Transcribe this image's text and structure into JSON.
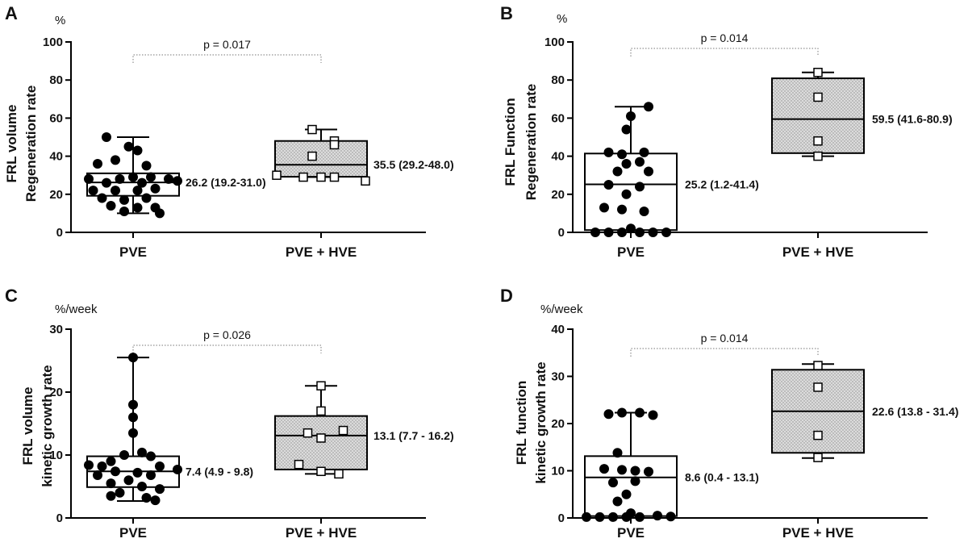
{
  "chart_data": [
    {
      "id": "A",
      "type": "box",
      "panel_label": "A",
      "unit": "%",
      "ylabel": [
        "FRL volume",
        "Regeneration rate"
      ],
      "ylim": [
        0,
        100
      ],
      "yticks": [
        0,
        20,
        40,
        60,
        80,
        100
      ],
      "categories": [
        "PVE",
        "PVE + HVE"
      ],
      "p_value": "p = 0.017",
      "groups": [
        {
          "name": "PVE",
          "marker": "circle",
          "fill": "none",
          "min": 10,
          "q1": 19.2,
          "median": 26.2,
          "q3": 31.0,
          "max": 50,
          "annotation": "26.2 (19.2-31.0)",
          "points": [
            {
              "j": -0.6,
              "y": 50
            },
            {
              "j": -0.1,
              "y": 45
            },
            {
              "j": 0.1,
              "y": 43
            },
            {
              "j": -0.4,
              "y": 38
            },
            {
              "j": -0.8,
              "y": 36
            },
            {
              "j": 0.3,
              "y": 35
            },
            {
              "j": -1.0,
              "y": 28
            },
            {
              "j": -0.3,
              "y": 28
            },
            {
              "j": 0.0,
              "y": 29
            },
            {
              "j": 0.4,
              "y": 29
            },
            {
              "j": 0.8,
              "y": 28
            },
            {
              "j": 1.0,
              "y": 27
            },
            {
              "j": -0.6,
              "y": 26
            },
            {
              "j": 0.2,
              "y": 26
            },
            {
              "j": -0.9,
              "y": 22
            },
            {
              "j": -0.4,
              "y": 22
            },
            {
              "j": 0.1,
              "y": 22
            },
            {
              "j": 0.5,
              "y": 23
            },
            {
              "j": -0.7,
              "y": 18
            },
            {
              "j": -0.2,
              "y": 17
            },
            {
              "j": 0.3,
              "y": 18
            },
            {
              "j": -0.5,
              "y": 14
            },
            {
              "j": 0.1,
              "y": 13
            },
            {
              "j": 0.5,
              "y": 13
            },
            {
              "j": -0.2,
              "y": 11
            },
            {
              "j": 0.6,
              "y": 10
            }
          ]
        },
        {
          "name": "PVE + HVE",
          "marker": "square",
          "fill": "dotted",
          "min": 29,
          "q1": 29.2,
          "median": 35.5,
          "q3": 48.0,
          "max": 54,
          "annotation": "35.5 (29.2-48.0)",
          "points": [
            {
              "j": -0.2,
              "y": 54
            },
            {
              "j": 0.3,
              "y": 48
            },
            {
              "j": 0.3,
              "y": 46
            },
            {
              "j": -0.2,
              "y": 40
            },
            {
              "j": -1.0,
              "y": 30
            },
            {
              "j": -0.4,
              "y": 29
            },
            {
              "j": 0.0,
              "y": 29
            },
            {
              "j": 0.3,
              "y": 29
            },
            {
              "j": 1.0,
              "y": 27
            }
          ]
        }
      ]
    },
    {
      "id": "B",
      "type": "box",
      "panel_label": "B",
      "unit": "%",
      "ylabel": [
        "FRL Function",
        "Regeneration rate"
      ],
      "ylim": [
        0,
        100
      ],
      "yticks": [
        0,
        20,
        40,
        60,
        80,
        100
      ],
      "categories": [
        "PVE",
        "PVE + HVE"
      ],
      "p_value": "p = 0.014",
      "groups": [
        {
          "name": "PVE",
          "marker": "circle",
          "fill": "none",
          "min": 0,
          "q1": 1.2,
          "median": 25.2,
          "q3": 41.4,
          "max": 66,
          "annotation": "25.2 (1.2-41.4)",
          "points": [
            {
              "j": 0.4,
              "y": 66
            },
            {
              "j": 0.0,
              "y": 61
            },
            {
              "j": -0.1,
              "y": 54
            },
            {
              "j": -0.5,
              "y": 42
            },
            {
              "j": -0.2,
              "y": 41
            },
            {
              "j": 0.3,
              "y": 42
            },
            {
              "j": 0.2,
              "y": 37
            },
            {
              "j": -0.1,
              "y": 36
            },
            {
              "j": -0.3,
              "y": 32
            },
            {
              "j": 0.4,
              "y": 32
            },
            {
              "j": -0.5,
              "y": 25
            },
            {
              "j": 0.2,
              "y": 24
            },
            {
              "j": -0.1,
              "y": 20
            },
            {
              "j": -0.6,
              "y": 13
            },
            {
              "j": -0.2,
              "y": 12
            },
            {
              "j": 0.3,
              "y": 11
            },
            {
              "j": 0.0,
              "y": 2
            },
            {
              "j": -0.8,
              "y": 0
            },
            {
              "j": -0.5,
              "y": 0
            },
            {
              "j": -0.2,
              "y": 0
            },
            {
              "j": 0.2,
              "y": 0
            },
            {
              "j": 0.5,
              "y": 0
            },
            {
              "j": 0.8,
              "y": 0
            }
          ]
        },
        {
          "name": "PVE + HVE",
          "marker": "square",
          "fill": "dotted",
          "min": 40,
          "q1": 41.6,
          "median": 59.5,
          "q3": 80.9,
          "max": 84,
          "annotation": "59.5 (41.6-80.9)",
          "points": [
            {
              "j": 0.0,
              "y": 84
            },
            {
              "j": 0.0,
              "y": 71
            },
            {
              "j": 0.0,
              "y": 48
            },
            {
              "j": 0.0,
              "y": 40
            }
          ]
        }
      ]
    },
    {
      "id": "C",
      "type": "box",
      "panel_label": "C",
      "unit": "%/week",
      "ylabel": [
        "FRL volume",
        "kinetic growth rate"
      ],
      "ylim": [
        0,
        30
      ],
      "yticks": [
        0,
        10,
        20,
        30
      ],
      "categories": [
        "PVE",
        "PVE + HVE"
      ],
      "p_value": "p = 0.026",
      "groups": [
        {
          "name": "PVE",
          "marker": "circle",
          "fill": "none",
          "min": 2.7,
          "q1": 4.9,
          "median": 7.4,
          "q3": 9.8,
          "max": 25.5,
          "annotation": "7.4 (4.9 - 9.8)",
          "points": [
            {
              "j": 0.0,
              "y": 25.5
            },
            {
              "j": 0.0,
              "y": 18
            },
            {
              "j": 0.0,
              "y": 16
            },
            {
              "j": 0.0,
              "y": 13.5
            },
            {
              "j": 0.2,
              "y": 10.4
            },
            {
              "j": -0.2,
              "y": 10.0
            },
            {
              "j": 0.4,
              "y": 9.8
            },
            {
              "j": -0.5,
              "y": 9.0
            },
            {
              "j": -1.0,
              "y": 8.4
            },
            {
              "j": -0.7,
              "y": 8.2
            },
            {
              "j": 0.6,
              "y": 8.2
            },
            {
              "j": 1.0,
              "y": 7.7
            },
            {
              "j": -0.4,
              "y": 7.4
            },
            {
              "j": 0.1,
              "y": 7.2
            },
            {
              "j": -0.8,
              "y": 6.8
            },
            {
              "j": 0.4,
              "y": 6.8
            },
            {
              "j": -0.1,
              "y": 6.0
            },
            {
              "j": -0.5,
              "y": 5.5
            },
            {
              "j": 0.2,
              "y": 5.0
            },
            {
              "j": 0.6,
              "y": 4.6
            },
            {
              "j": -0.3,
              "y": 4.0
            },
            {
              "j": -0.5,
              "y": 3.5
            },
            {
              "j": 0.3,
              "y": 3.2
            },
            {
              "j": 0.5,
              "y": 2.8
            }
          ]
        },
        {
          "name": "PVE + HVE",
          "marker": "square",
          "fill": "dotted",
          "min": 7.0,
          "q1": 7.7,
          "median": 13.1,
          "q3": 16.2,
          "max": 21,
          "annotation": "13.1 (7.7 - 16.2)",
          "points": [
            {
              "j": 0.0,
              "y": 21
            },
            {
              "j": 0.0,
              "y": 17
            },
            {
              "j": 0.5,
              "y": 13.9
            },
            {
              "j": -0.3,
              "y": 13.5
            },
            {
              "j": 0.0,
              "y": 12.7
            },
            {
              "j": -0.5,
              "y": 8.5
            },
            {
              "j": 0.0,
              "y": 7.4
            },
            {
              "j": 0.4,
              "y": 7.0
            }
          ]
        }
      ]
    },
    {
      "id": "D",
      "type": "box",
      "panel_label": "D",
      "unit": "%/week",
      "ylabel": [
        "FRL function",
        "kinetic growth rate"
      ],
      "ylim": [
        0,
        40
      ],
      "yticks": [
        0,
        10,
        20,
        30,
        40
      ],
      "categories": [
        "PVE",
        "PVE + HVE"
      ],
      "p_value": "p = 0.014",
      "groups": [
        {
          "name": "PVE",
          "marker": "circle",
          "fill": "none",
          "min": 0,
          "q1": 0.4,
          "median": 8.6,
          "q3": 13.1,
          "max": 22.3,
          "annotation": "8.6 (0.4 - 13.1)",
          "points": [
            {
              "j": -0.2,
              "y": 22.3
            },
            {
              "j": 0.2,
              "y": 22.3
            },
            {
              "j": -0.5,
              "y": 22.0
            },
            {
              "j": 0.5,
              "y": 21.8
            },
            {
              "j": -0.3,
              "y": 13.8
            },
            {
              "j": -0.6,
              "y": 10.4
            },
            {
              "j": -0.2,
              "y": 10.2
            },
            {
              "j": 0.1,
              "y": 10.0
            },
            {
              "j": 0.4,
              "y": 9.8
            },
            {
              "j": -0.4,
              "y": 7.5
            },
            {
              "j": 0.1,
              "y": 7.8
            },
            {
              "j": -0.1,
              "y": 5.0
            },
            {
              "j": -0.3,
              "y": 3.5
            },
            {
              "j": 0.0,
              "y": 1.0
            },
            {
              "j": -1.0,
              "y": 0.2
            },
            {
              "j": -0.7,
              "y": 0.2
            },
            {
              "j": -0.4,
              "y": 0.2
            },
            {
              "j": -0.1,
              "y": 0.2
            },
            {
              "j": 0.2,
              "y": 0.2
            },
            {
              "j": 0.6,
              "y": 0.5
            },
            {
              "j": 0.9,
              "y": 0.3
            }
          ]
        },
        {
          "name": "PVE + HVE",
          "marker": "square",
          "fill": "dotted",
          "min": 12.7,
          "q1": 13.8,
          "median": 22.6,
          "q3": 31.4,
          "max": 32.6,
          "annotation": "22.6 (13.8 - 31.4)",
          "points": [
            {
              "j": 0.0,
              "y": 32.3
            },
            {
              "j": 0.0,
              "y": 27.7
            },
            {
              "j": 0.0,
              "y": 17.5
            },
            {
              "j": 0.0,
              "y": 12.8
            }
          ]
        }
      ]
    }
  ]
}
